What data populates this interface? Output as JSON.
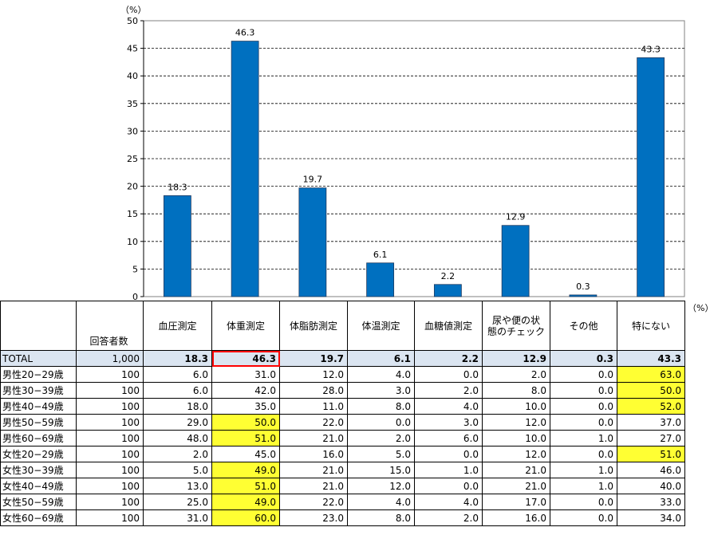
{
  "chart_data": {
    "type": "bar",
    "unit_label": "（%）",
    "categories": [
      "血圧測定",
      "体重測定",
      "体脂肪測定",
      "体温測定",
      "血糖値測定",
      "尿や便の状態のチェック",
      "その他",
      "特にない"
    ],
    "values": [
      18.3,
      46.3,
      19.7,
      6.1,
      2.2,
      12.9,
      0.3,
      43.3
    ],
    "data_labels": [
      "18.3",
      "46.3",
      "19.7",
      "6.1",
      "2.2",
      "12.9",
      "0.3",
      "43.3"
    ],
    "y_ticks": [
      "0",
      "5",
      "10",
      "15",
      "20",
      "25",
      "30",
      "35",
      "40",
      "45",
      "50"
    ],
    "ylim": [
      0,
      50
    ],
    "grid": true,
    "bar_color": "#0070c0"
  },
  "table": {
    "unit_label": "（%）",
    "n_header": "回答者数",
    "columns": [
      "血圧測定",
      "体重測定",
      "体脂肪測定",
      "体温測定",
      "血糖値測定",
      "尿や便の状\n態のチェック",
      "その他",
      "特にない"
    ],
    "highlight_color": "#ffff33",
    "rows": [
      {
        "label": "TOTAL",
        "n": "1,000",
        "values": [
          "18.3",
          "46.3",
          "19.7",
          "6.1",
          "2.2",
          "12.9",
          "0.3",
          "43.3"
        ],
        "highlight": []
      },
      {
        "label": "男性20−29歳",
        "n": "100",
        "values": [
          "6.0",
          "31.0",
          "12.0",
          "4.0",
          "0.0",
          "2.0",
          "0.0",
          "63.0"
        ],
        "highlight": [
          7
        ]
      },
      {
        "label": "男性30−39歳",
        "n": "100",
        "values": [
          "6.0",
          "42.0",
          "28.0",
          "3.0",
          "2.0",
          "8.0",
          "0.0",
          "50.0"
        ],
        "highlight": [
          7
        ]
      },
      {
        "label": "男性40−49歳",
        "n": "100",
        "values": [
          "18.0",
          "35.0",
          "11.0",
          "8.0",
          "4.0",
          "10.0",
          "0.0",
          "52.0"
        ],
        "highlight": [
          7
        ]
      },
      {
        "label": "男性50−59歳",
        "n": "100",
        "values": [
          "29.0",
          "50.0",
          "22.0",
          "0.0",
          "3.0",
          "12.0",
          "0.0",
          "37.0"
        ],
        "highlight": [
          1
        ]
      },
      {
        "label": "男性60−69歳",
        "n": "100",
        "values": [
          "48.0",
          "51.0",
          "21.0",
          "2.0",
          "6.0",
          "10.0",
          "1.0",
          "27.0"
        ],
        "highlight": [
          1
        ]
      },
      {
        "label": "女性20−29歳",
        "n": "100",
        "values": [
          "2.0",
          "45.0",
          "16.0",
          "5.0",
          "0.0",
          "12.0",
          "0.0",
          "51.0"
        ],
        "highlight": [
          7
        ]
      },
      {
        "label": "女性30−39歳",
        "n": "100",
        "values": [
          "5.0",
          "49.0",
          "21.0",
          "15.0",
          "1.0",
          "21.0",
          "1.0",
          "46.0"
        ],
        "highlight": [
          1
        ]
      },
      {
        "label": "女性40−49歳",
        "n": "100",
        "values": [
          "13.0",
          "51.0",
          "21.0",
          "12.0",
          "0.0",
          "21.0",
          "1.0",
          "40.0"
        ],
        "highlight": [
          1
        ]
      },
      {
        "label": "女性50−59歳",
        "n": "100",
        "values": [
          "25.0",
          "49.0",
          "22.0",
          "4.0",
          "4.0",
          "17.0",
          "0.0",
          "33.0"
        ],
        "highlight": [
          1
        ]
      },
      {
        "label": "女性60−69歳",
        "n": "100",
        "values": [
          "31.0",
          "60.0",
          "23.0",
          "8.0",
          "2.0",
          "16.0",
          "0.0",
          "34.0"
        ],
        "highlight": [
          1
        ]
      }
    ]
  }
}
